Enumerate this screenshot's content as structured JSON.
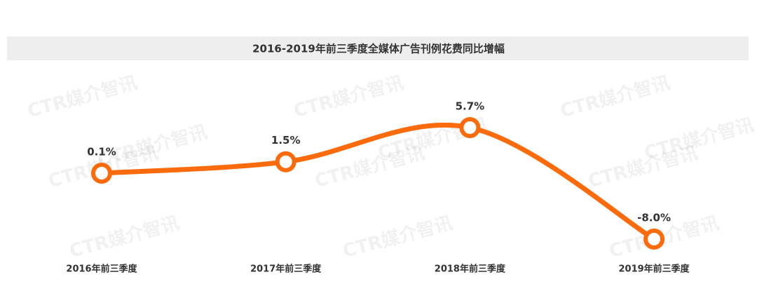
{
  "chart_data": {
    "type": "line",
    "title": "2016-2019年前三季度全媒体广告刊例花费同比增幅",
    "categories": [
      "2016年前三季度",
      "2017年前三季度",
      "2018年前三季度",
      "2019年前三季度"
    ],
    "values": [
      0.1,
      1.5,
      5.7,
      -8.0
    ],
    "value_labels": [
      "0.1%",
      "1.5%",
      "5.7%",
      "-8.0%"
    ],
    "color": "#fb6a0b",
    "watermark": "CTR媒介智讯"
  }
}
